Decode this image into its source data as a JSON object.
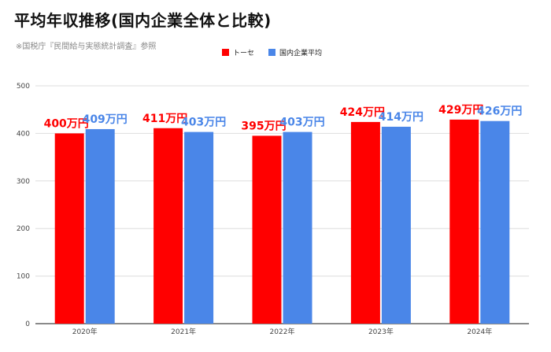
{
  "title": "平均年収推移(国内企業全体と比較)",
  "subtitle": "※国税庁『民間給与実態統計調査』参照",
  "colors": {
    "series1": "#ff0000",
    "series2": "#4a86e8",
    "grid": "#dddddd",
    "axis": "#444444"
  },
  "chart_data": {
    "type": "bar",
    "title": "平均年収推移(国内企業全体と比較)",
    "categories": [
      "2020年",
      "2021年",
      "2022年",
      "2023年",
      "2024年"
    ],
    "series": [
      {
        "name": "トーセ",
        "values": [
          400,
          411,
          395,
          424,
          429
        ],
        "labels": [
          "400万円",
          "411万円",
          "395万円",
          "424万円",
          "429万円"
        ]
      },
      {
        "name": "国内企業平均",
        "values": [
          409,
          403,
          403,
          414,
          426
        ],
        "labels": [
          "409万円",
          "403万円",
          "403万円",
          "414万円",
          "426万円"
        ]
      }
    ],
    "ylim": [
      0,
      500
    ],
    "yticks": [
      0,
      100,
      200,
      300,
      400,
      500
    ],
    "grid": true,
    "legend_position": "top"
  }
}
